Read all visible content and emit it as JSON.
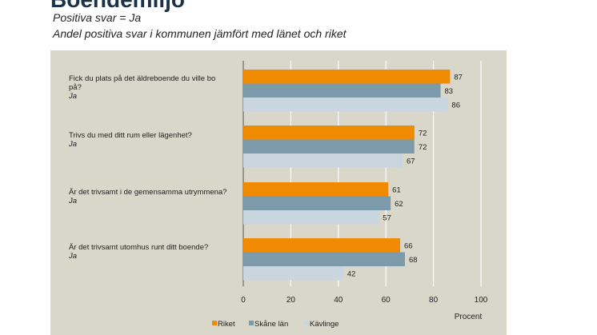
{
  "header": {
    "title": "Boendemiljö",
    "subtitle_1": "Positiva svar = Ja",
    "subtitle_2": "Andel positiva svar i kommunen jämfört med länet och riket"
  },
  "chart_data": {
    "type": "bar",
    "orientation": "horizontal",
    "categories": [
      {
        "question": "Fick du plats på det äldreboende du ville bo på?",
        "answer": "Ja"
      },
      {
        "question": "Trivs du med ditt rum eller lägenhet?",
        "answer": "Ja"
      },
      {
        "question": "Är det trivsamt i de gemensamma utrymmena?",
        "answer": "Ja"
      },
      {
        "question": "Är det trivsamt utomhus runt ditt boende?",
        "answer": "Ja"
      }
    ],
    "series": [
      {
        "name": "Riket",
        "color": "#f08a00",
        "values": [
          87,
          72,
          61,
          66
        ]
      },
      {
        "name": "Skåne län",
        "color": "#7d9aab",
        "values": [
          83,
          72,
          62,
          68
        ]
      },
      {
        "name": "Kävlinge",
        "color": "#c9d6df",
        "values": [
          86,
          67,
          57,
          42
        ]
      }
    ],
    "xlim": [
      0,
      100
    ],
    "xticks": [
      0,
      20,
      40,
      60,
      80,
      100
    ],
    "xlabel": "Procent",
    "grid": true,
    "legend": "bottom",
    "background": "#d9d6ca"
  }
}
